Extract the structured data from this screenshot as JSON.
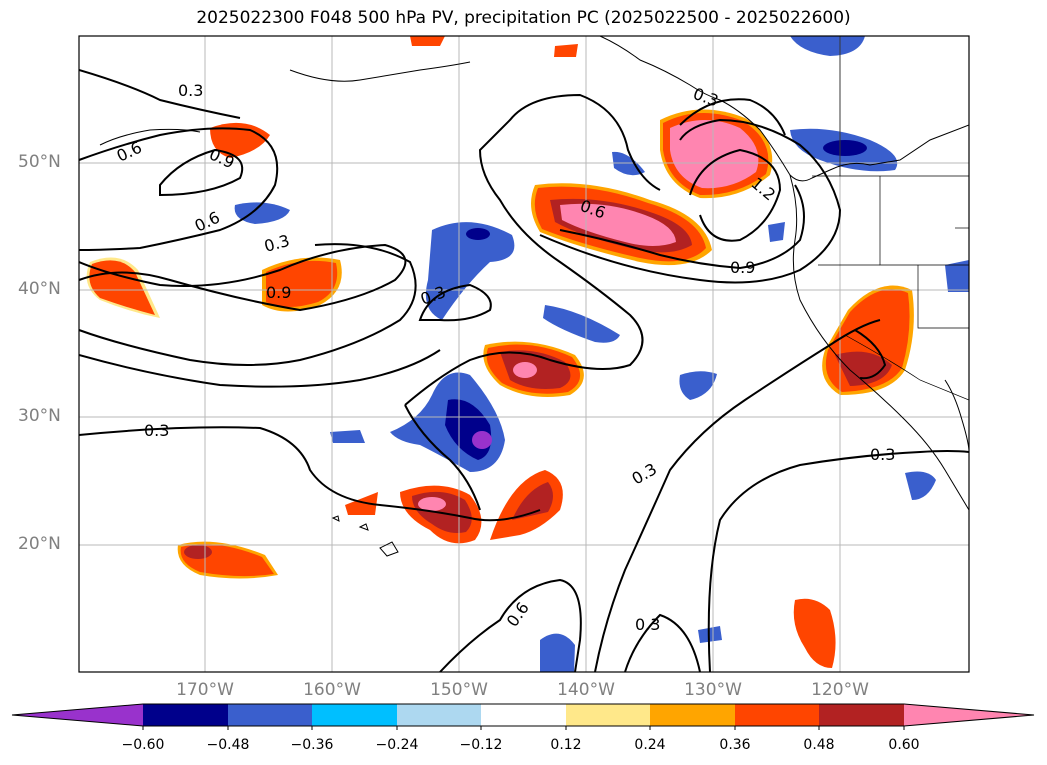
{
  "title": "2025022300 F048 500 hPa PV, precipitation PC (2025022500 - 2025022600)",
  "lat_labels": [
    "50°N",
    "40°N",
    "30°N",
    "20°N"
  ],
  "lon_labels": [
    "170°W",
    "160°W",
    "150°W",
    "140°W",
    "130°W",
    "120°W"
  ],
  "contour_labels": [
    "0.3",
    "0.6",
    "0.9",
    "0.6",
    "0.3",
    "0.9",
    "0.3",
    "0.6",
    "1.2",
    "0.9",
    "0.3",
    "0.3",
    "0.6",
    "0.3",
    "0.3",
    "0.3"
  ],
  "colorbar": {
    "ticks": [
      "−0.60",
      "−0.48",
      "−0.36",
      "−0.24",
      "−0.12",
      "0.12",
      "0.24",
      "0.36",
      "0.48",
      "0.60"
    ],
    "colors": [
      "#9932cc",
      "#00008b",
      "#3a5fcd",
      "#00bfff",
      "#add8f0",
      "#ffffff",
      "#ffe88a",
      "#ffa500",
      "#ff4500",
      "#b22222",
      "#ff85b0"
    ]
  }
}
